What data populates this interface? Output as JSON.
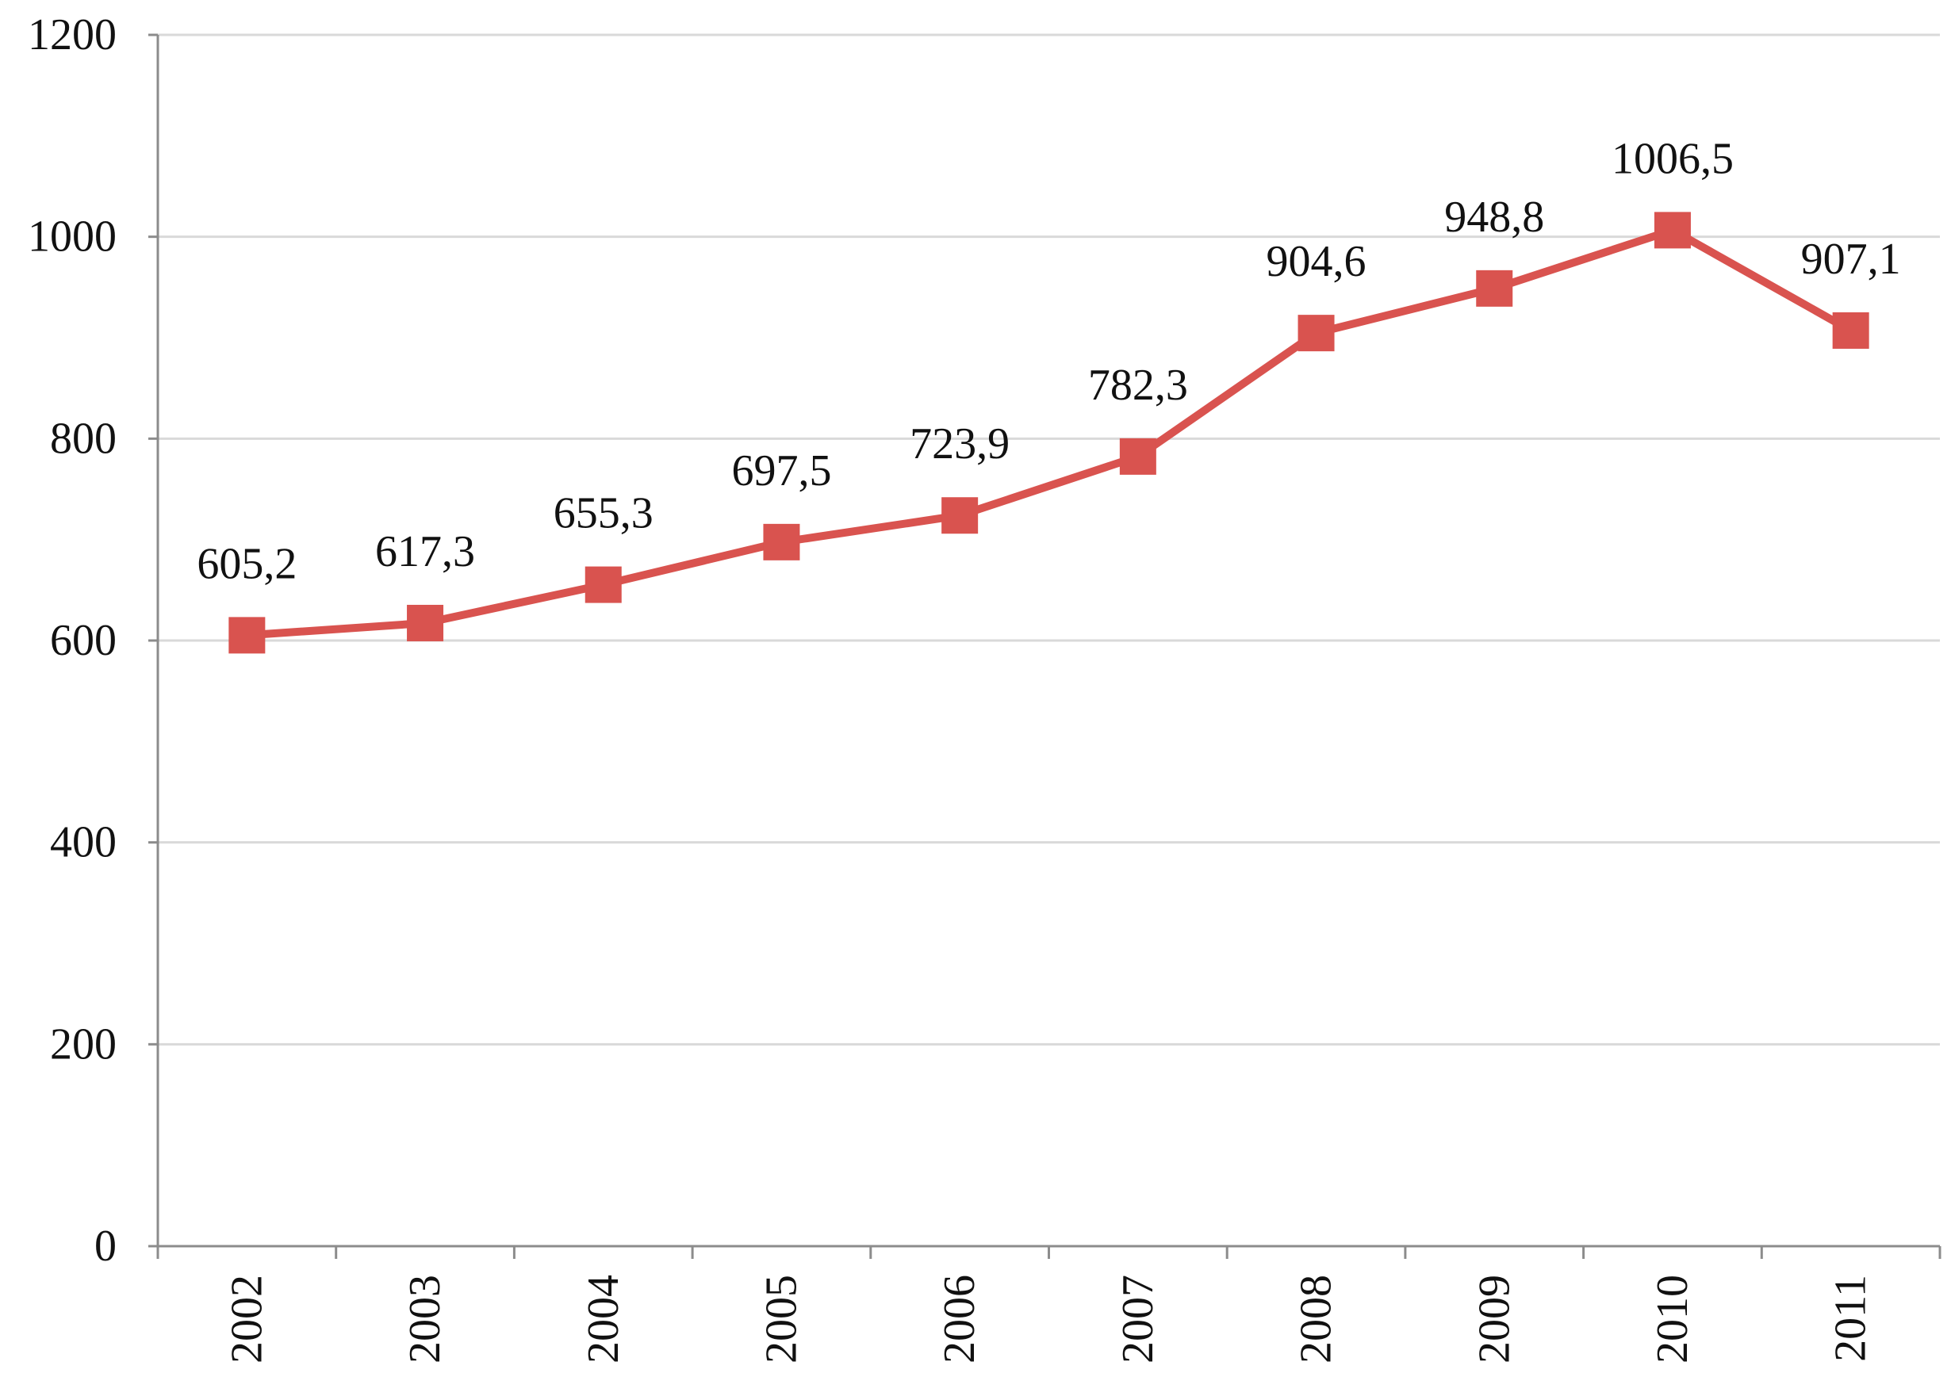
{
  "chart_data": {
    "type": "line",
    "title": "",
    "xlabel": "",
    "ylabel": "",
    "categories": [
      "2002",
      "2003",
      "2004",
      "2005",
      "2006",
      "2007",
      "2008",
      "2009",
      "2010",
      "2011"
    ],
    "series": [
      {
        "values": [
          605.2,
          617.3,
          655.3,
          697.5,
          723.9,
          782.3,
          904.6,
          948.8,
          1006.5,
          907.1
        ],
        "data_labels": [
          "605,2",
          "617,3",
          "655,3",
          "697,5",
          "723,9",
          "782,3",
          "904,6",
          "948,8",
          "1006,5",
          "907,1"
        ],
        "color": "#d9534f",
        "marker": "square"
      }
    ],
    "ylim": [
      0,
      1200
    ],
    "yticks": [
      0,
      200,
      400,
      600,
      800,
      1000,
      1200
    ],
    "ytick_labels": [
      "0",
      "200",
      "400",
      "600",
      "800",
      "1000",
      "1200"
    ],
    "x_tick_rotation": "vertical",
    "grid": {
      "horizontal": true,
      "vertical": false,
      "color": "#d9d9d9"
    },
    "axis_color": "#8c8c8c",
    "legend": "none"
  }
}
